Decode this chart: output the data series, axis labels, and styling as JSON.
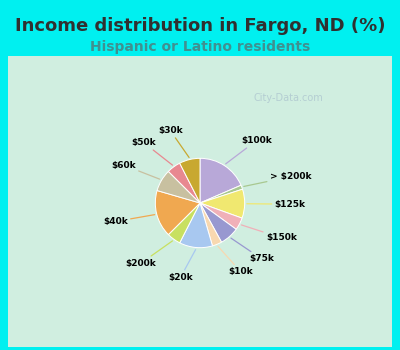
{
  "title": "Income distribution in Fargo, ND (%)",
  "subtitle": "Hispanic or Latino residents",
  "labels": [
    "$100k",
    "> $200k",
    "$125k",
    "$150k",
    "$75k",
    "$10k",
    "$20k",
    "$200k",
    "$40k",
    "$60k",
    "$50k",
    "$30k"
  ],
  "sizes": [
    18.5,
    1.5,
    10.5,
    4.5,
    7.0,
    3.5,
    12.0,
    5.0,
    17.0,
    8.0,
    5.0,
    7.5
  ],
  "colors": [
    "#b8a8d8",
    "#a8c890",
    "#f0e870",
    "#f0b0b8",
    "#9898d0",
    "#f8d8b0",
    "#a8c8f0",
    "#c8e060",
    "#f0a850",
    "#c8c0a0",
    "#e88890",
    "#c8a830"
  ],
  "bg_color_cyan": "#00f0f0",
  "bg_color_chart_tl": "#c8f0e0",
  "bg_color_chart_br": "#e0f8f8",
  "title_color": "#303030",
  "subtitle_color": "#409090",
  "watermark": "City-Data.com",
  "title_fontsize": 13,
  "subtitle_fontsize": 10
}
